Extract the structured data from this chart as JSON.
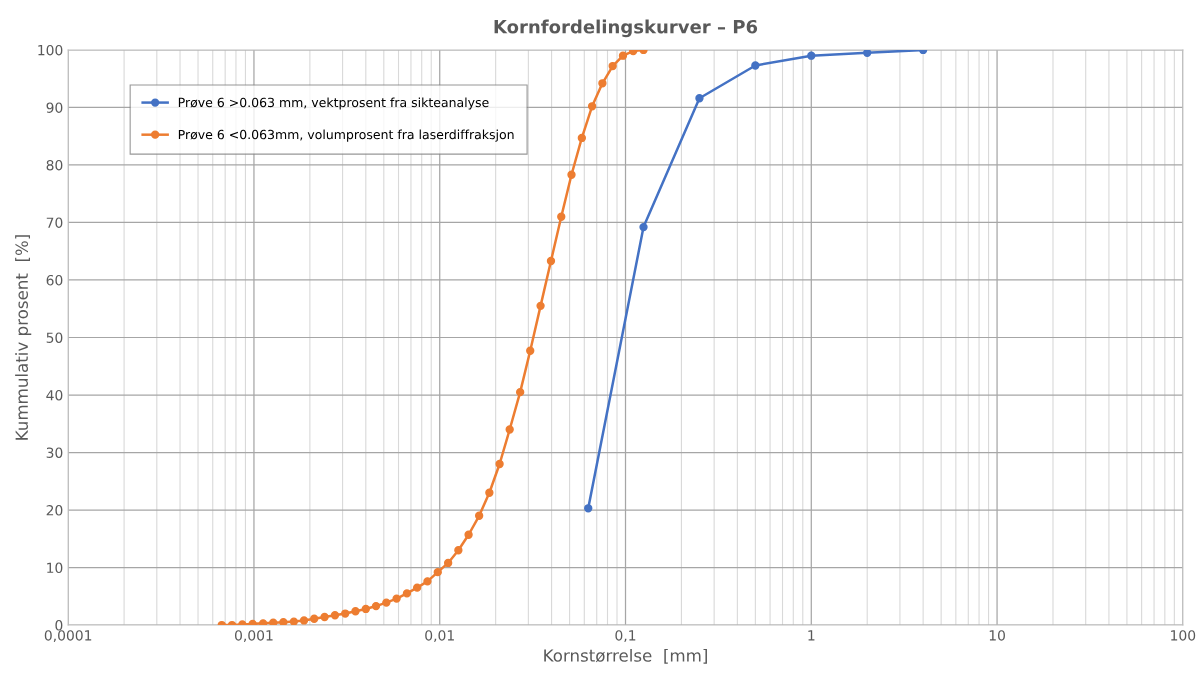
{
  "chart_data": {
    "type": "line",
    "title": "Kornfordelingskurver – P6",
    "xlabel": "Kornstørrelse  [mm]",
    "ylabel": "Kummulativ prosent  [%]",
    "log": "x",
    "xlim": [
      0.0001,
      100
    ],
    "ylim": [
      0,
      100
    ],
    "xticks": [
      {
        "value": 0.0001,
        "label": "0,0001"
      },
      {
        "value": 0.001,
        "label": "0,001"
      },
      {
        "value": 0.01,
        "label": "0,01"
      },
      {
        "value": 0.1,
        "label": "0,1"
      },
      1,
      10,
      100
    ],
    "yticks": [
      0,
      10,
      20,
      30,
      40,
      50,
      60,
      70,
      80,
      90,
      100
    ],
    "grid": true,
    "legend": "top left",
    "marker": "circle",
    "line_style": "solid",
    "series": [
      {
        "name": "Prøve 6 >0.063 mm, vektprosent fra sikteanalyse",
        "color": "#4472c4",
        "x": [
          0.063,
          0.125,
          0.25,
          0.5,
          1,
          2,
          4
        ],
        "values": [
          20.3,
          69.2,
          91.6,
          97.3,
          99.0,
          99.5,
          100
        ]
      },
      {
        "name": "Prøve 6 <0.063mm, volumprosent fra laserdiffraksjon",
        "color": "#ed7d31",
        "x": [
          0.000671,
          0.000762,
          0.000866,
          0.000984,
          0.00112,
          0.00127,
          0.00144,
          0.00164,
          0.00186,
          0.00211,
          0.0024,
          0.00273,
          0.0031,
          0.00352,
          0.004,
          0.00454,
          0.00516,
          0.00586,
          0.00666,
          0.00756,
          0.00859,
          0.00976,
          0.0111,
          0.0126,
          0.0143,
          0.0163,
          0.0185,
          0.021,
          0.0238,
          0.0271,
          0.0307,
          0.0349,
          0.0397,
          0.0451,
          0.0512,
          0.0582,
          0.0661,
          0.0751,
          0.0853,
          0.0969,
          0.11,
          0.125
        ],
        "values": [
          0,
          0,
          0.1,
          0.2,
          0.3,
          0.4,
          0.5,
          0.6,
          0.8,
          1.1,
          1.4,
          1.7,
          2,
          2.4,
          2.8,
          3.3,
          3.9,
          4.6,
          5.5,
          6.5,
          7.6,
          9.2,
          10.8,
          13,
          15.7,
          19,
          23,
          28,
          34,
          40.5,
          47.7,
          55.5,
          63.3,
          71,
          78.3,
          84.7,
          90.2,
          94.2,
          97.2,
          99,
          99.8,
          100
        ]
      }
    ]
  }
}
